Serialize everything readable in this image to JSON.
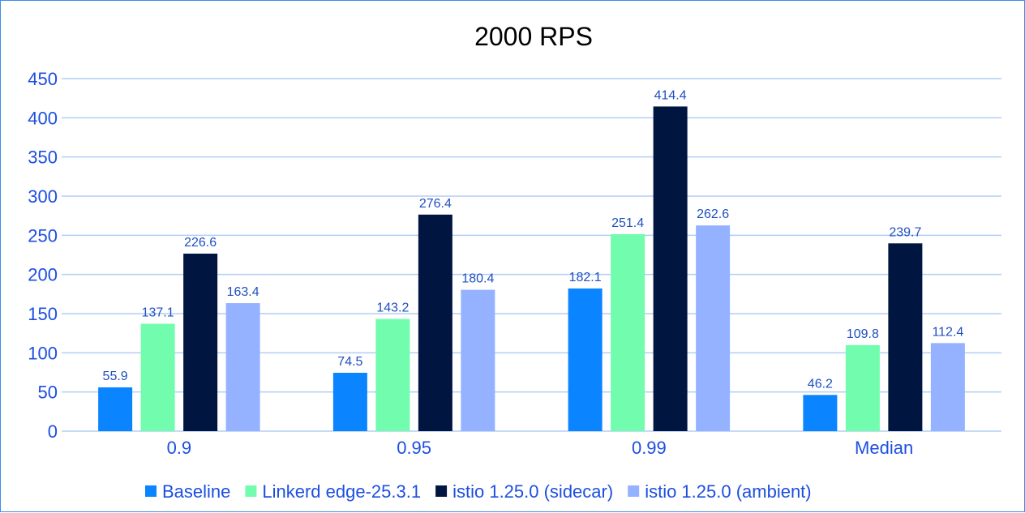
{
  "chart_data": {
    "type": "bar",
    "title": "2000 RPS",
    "categories": [
      "0.9",
      "0.95",
      "0.99",
      "Median"
    ],
    "series": [
      {
        "name": "Baseline",
        "color": "#0a84ff",
        "values": [
          55.9,
          74.5,
          182.1,
          46.2
        ]
      },
      {
        "name": "Linkerd edge-25.3.1",
        "color": "#72fcad",
        "values": [
          137.1,
          143.2,
          251.4,
          109.8
        ]
      },
      {
        "name": "istio 1.25.0 (sidecar)",
        "color": "#001540",
        "values": [
          226.6,
          276.4,
          414.4,
          239.7
        ]
      },
      {
        "name": "istio 1.25.0 (ambient)",
        "color": "#94b2ff",
        "values": [
          163.4,
          180.4,
          262.6,
          112.4
        ]
      }
    ],
    "yticks": [
      "0",
      "50",
      "100",
      "150",
      "200",
      "250",
      "300",
      "350",
      "400",
      "450"
    ],
    "ylim": [
      0,
      450
    ],
    "grid": true,
    "legend": "bottom",
    "xlabel": "",
    "ylabel": ""
  }
}
